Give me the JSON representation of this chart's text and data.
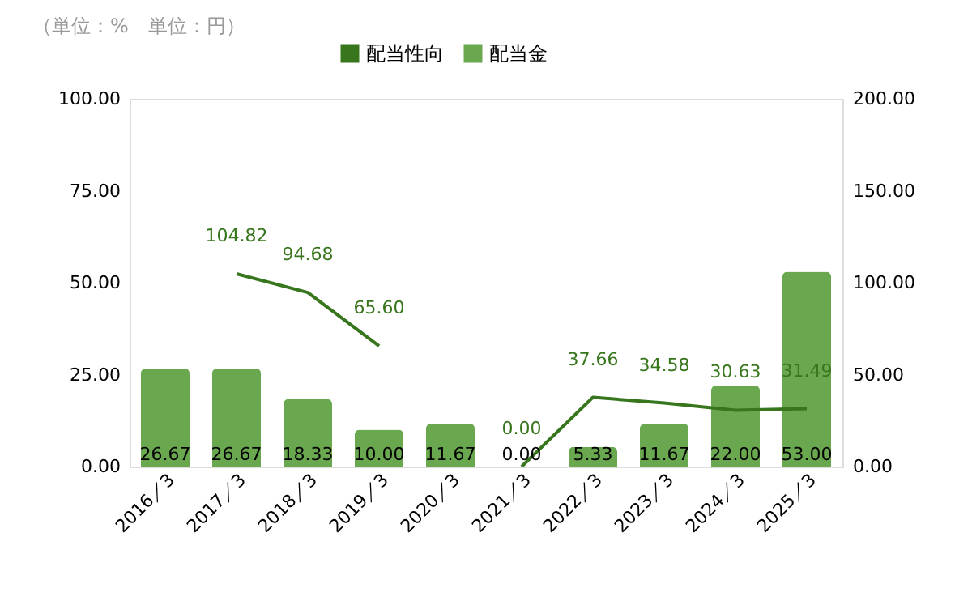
{
  "chart_data": {
    "type": "bar",
    "annotations": [
      "（単位：%　単位：円）"
    ],
    "categories": [
      "2016／3",
      "2017／3",
      "2018／3",
      "2019／3",
      "2020／3",
      "2021／3",
      "2022／3",
      "2023／3",
      "2024／3",
      "2025／3"
    ],
    "series": [
      {
        "name": "配当性向",
        "type": "line",
        "axis": "y2",
        "color": "#38761d",
        "values": [
          null,
          104.82,
          94.68,
          65.6,
          null,
          0.0,
          37.66,
          34.58,
          30.63,
          31.49
        ],
        "value_labels": [
          null,
          "104.82",
          "94.68",
          "65.60",
          null,
          "0.00",
          "37.66",
          "34.58",
          "30.63",
          "31.49"
        ]
      },
      {
        "name": "配当金",
        "color": "#6aa84f",
        "values": [
          26.67,
          26.67,
          18.33,
          10.0,
          11.67,
          0.0,
          5.33,
          11.67,
          22.0,
          53.0
        ],
        "value_labels": [
          "26.67",
          "26.67",
          "18.33",
          "10.00",
          "11.67",
          "0.00",
          "5.33",
          "11.67",
          "22.00",
          "53.00"
        ]
      }
    ],
    "ylim": [
      0,
      100
    ],
    "yticks": [
      {
        "value": 0,
        "label": "0.00"
      },
      {
        "value": 25,
        "label": "25.00"
      },
      {
        "value": 50,
        "label": "50.00"
      },
      {
        "value": 75,
        "label": "75.00"
      },
      {
        "value": 100,
        "label": "100.00"
      }
    ],
    "y2lim": [
      0,
      200
    ],
    "y2ticks": [
      {
        "value": 0,
        "label": "0.00"
      },
      {
        "value": 50,
        "label": "50.00"
      },
      {
        "value": 100,
        "label": "100.00"
      },
      {
        "value": 150,
        "label": "150.00"
      },
      {
        "value": 200,
        "label": "200.00"
      }
    ],
    "legend": "top",
    "grid": false
  }
}
